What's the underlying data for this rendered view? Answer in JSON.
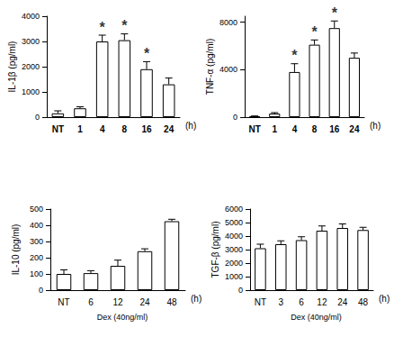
{
  "chart_data": [
    {
      "type": "bar",
      "y_label": "IL-1β (pg/ml)",
      "x_end_label": "(h)",
      "categories": [
        "NT",
        "1",
        "4",
        "8",
        "16",
        "24"
      ],
      "values": [
        150,
        350,
        3000,
        3050,
        1900,
        1300
      ],
      "errors": [
        100,
        60,
        250,
        250,
        300,
        250
      ],
      "color": "#ffffff",
      "ylim": [
        0,
        4000
      ],
      "yticks": [
        0,
        1000,
        2000,
        3000,
        4000
      ],
      "annotations": [
        {
          "category": "4",
          "text": "*"
        },
        {
          "category": "8",
          "text": "*"
        },
        {
          "category": "16",
          "text": "*"
        }
      ]
    },
    {
      "type": "bar",
      "y_label": "TNF-α (pg/ml)",
      "x_end_label": "(h)",
      "categories": [
        "NT",
        "1",
        "4",
        "8",
        "16",
        "24"
      ],
      "values": [
        50,
        300,
        3800,
        6100,
        7500,
        5000
      ],
      "errors": [
        50,
        80,
        700,
        400,
        600,
        400
      ],
      "color": "#ffffff",
      "ylim": [
        0,
        8500
      ],
      "yticks": [
        0,
        4000,
        8000
      ],
      "annotations": [
        {
          "category": "4",
          "text": "*"
        },
        {
          "category": "8",
          "text": "*"
        },
        {
          "category": "16",
          "text": "*"
        }
      ]
    },
    {
      "type": "bar",
      "y_label": "IL-10 (pg/ml)",
      "x_label": "Dex (40ng/ml)",
      "x_end_label": "(h)",
      "categories": [
        "NT",
        "6",
        "12",
        "24",
        "48"
      ],
      "values": [
        100,
        105,
        150,
        240,
        425
      ],
      "errors": [
        25,
        15,
        35,
        15,
        12
      ],
      "color": "#ffffff",
      "ylim": [
        0,
        500
      ],
      "yticks": [
        0,
        100,
        200,
        300,
        400,
        500
      ]
    },
    {
      "type": "bar",
      "y_label": "TGF-β (pg/ml)",
      "x_label": "Dex (40ng/ml)",
      "x_end_label": "(h)",
      "categories": [
        "NT",
        "3",
        "6",
        "12",
        "24",
        "48"
      ],
      "values": [
        3100,
        3400,
        3700,
        4400,
        4600,
        4450
      ],
      "errors": [
        300,
        250,
        250,
        350,
        300,
        200
      ],
      "color": "#ffffff",
      "ylim": [
        0,
        6000
      ],
      "yticks": [
        0,
        1000,
        2000,
        3000,
        4000,
        5000,
        6000
      ]
    }
  ]
}
